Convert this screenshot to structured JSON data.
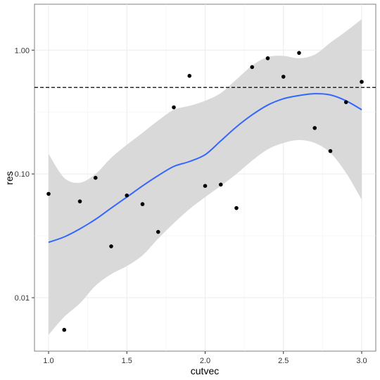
{
  "chart_data": {
    "type": "scatter",
    "title": "",
    "xlabel": "cutvec",
    "ylabel": "res",
    "xlim": [
      0.91,
      3.09
    ],
    "ylim": [
      0.0037,
      2.35
    ],
    "y_scale": "log10",
    "grid": true,
    "x_ticks": [
      {
        "value": 1.0,
        "label": "1.0"
      },
      {
        "value": 1.5,
        "label": "1.5"
      },
      {
        "value": 2.0,
        "label": "2.0"
      },
      {
        "value": 2.5,
        "label": "2.5"
      },
      {
        "value": 3.0,
        "label": "3.0"
      }
    ],
    "y_ticks": [
      {
        "value": 0.01,
        "label": "0.01"
      },
      {
        "value": 0.1,
        "label": "0.10"
      },
      {
        "value": 1.0,
        "label": "1.00"
      }
    ],
    "reference_line": {
      "y": 0.5,
      "style": "dashed",
      "color": "#000000"
    },
    "points": {
      "color": "#000000",
      "x": [
        1.0,
        1.1,
        1.2,
        1.3,
        1.4,
        1.5,
        1.6,
        1.7,
        1.8,
        1.9,
        2.0,
        2.1,
        2.2,
        2.3,
        2.4,
        2.5,
        2.6,
        2.7,
        2.8,
        2.9,
        3.0
      ],
      "y": [
        0.069,
        0.0055,
        0.06,
        0.093,
        0.026,
        0.067,
        0.057,
        0.034,
        0.345,
        0.62,
        0.08,
        0.082,
        0.053,
        0.73,
        0.86,
        0.61,
        0.95,
        0.235,
        0.153,
        0.38,
        0.555
      ]
    },
    "smooth": {
      "color": "#3366FF",
      "band_color": "#D9D9D9",
      "x": [
        1.0,
        1.1,
        1.2,
        1.3,
        1.4,
        1.5,
        1.6,
        1.7,
        1.8,
        1.9,
        2.0,
        2.1,
        2.2,
        2.3,
        2.4,
        2.5,
        2.6,
        2.7,
        2.8,
        2.9,
        3.0
      ],
      "fit": [
        0.028,
        0.031,
        0.036,
        0.043,
        0.053,
        0.065,
        0.08,
        0.097,
        0.115,
        0.126,
        0.143,
        0.185,
        0.24,
        0.3,
        0.36,
        0.405,
        0.43,
        0.445,
        0.435,
        0.39,
        0.33
      ],
      "lower": [
        0.005,
        0.007,
        0.009,
        0.0125,
        0.0155,
        0.018,
        0.022,
        0.03,
        0.04,
        0.052,
        0.065,
        0.08,
        0.1,
        0.128,
        0.158,
        0.178,
        0.188,
        0.178,
        0.148,
        0.102,
        0.062
      ],
      "upper": [
        0.145,
        0.093,
        0.085,
        0.1,
        0.135,
        0.172,
        0.215,
        0.27,
        0.33,
        0.355,
        0.39,
        0.45,
        0.58,
        0.75,
        0.88,
        0.9,
        0.86,
        0.92,
        1.15,
        1.42,
        1.78
      ]
    }
  }
}
